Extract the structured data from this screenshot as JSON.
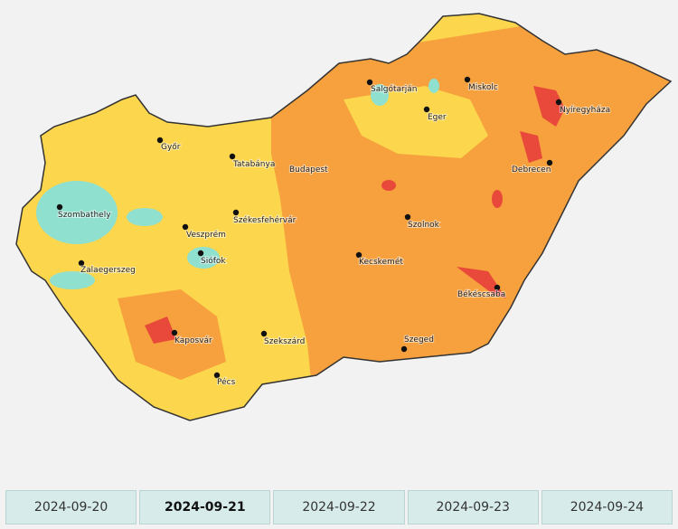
{
  "map": {
    "cities": [
      "Győr",
      "Tatabánya",
      "Budapest",
      "Salgótarján",
      "Miskolc",
      "Eger",
      "Nyíregyháza",
      "Debrecen",
      "Szombathely",
      "Székesfehérvár",
      "Szolnok",
      "Veszprém",
      "Siófok",
      "Zalaegerszeg",
      "Kecskemét",
      "Békéscsaba",
      "Kaposvár",
      "Szekszárd",
      "Szeged",
      "Pécs"
    ]
  },
  "date_tabs": {
    "dates": [
      "2024-09-20",
      "2024-09-21",
      "2024-09-22",
      "2024-09-23",
      "2024-09-24"
    ],
    "selected": 1
  }
}
